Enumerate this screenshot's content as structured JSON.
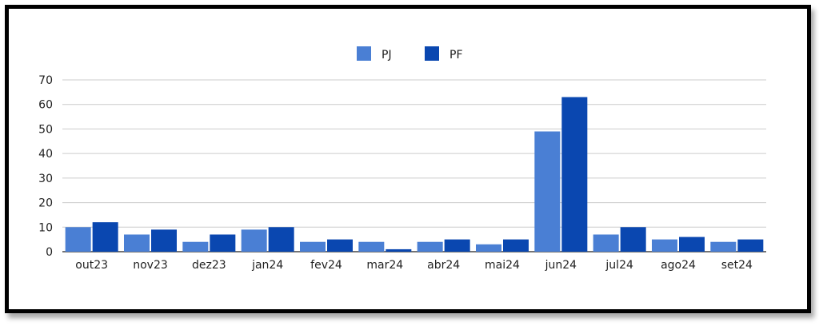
{
  "chart_data": {
    "type": "bar",
    "categories": [
      "out23",
      "nov23",
      "dez23",
      "jan24",
      "fev24",
      "mar24",
      "abr24",
      "mai24",
      "jun24",
      "jul24",
      "ago24",
      "set24"
    ],
    "series": [
      {
        "name": "PJ",
        "color": "#4a7fd4",
        "values": [
          10,
          7,
          4,
          9,
          4,
          4,
          4,
          3,
          49,
          7,
          5,
          4
        ]
      },
      {
        "name": "PF",
        "color": "#0a47b0",
        "values": [
          12,
          9,
          7,
          10,
          5,
          1,
          5,
          5,
          63,
          10,
          6,
          5
        ]
      }
    ],
    "ylim": [
      0,
      70
    ],
    "yticks": [
      0,
      10,
      20,
      30,
      40,
      50,
      60,
      70
    ],
    "grid": true,
    "legend_position": "top-center"
  }
}
